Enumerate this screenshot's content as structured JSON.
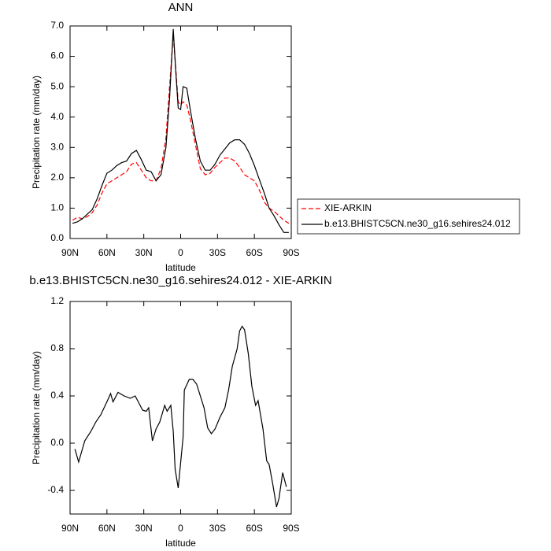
{
  "chart_data": [
    {
      "type": "line",
      "title": "ANN",
      "xlabel": "latitude",
      "ylabel": "Precipitation rate (mm/day)",
      "x": [
        88,
        84,
        80,
        76,
        72,
        68,
        64,
        60,
        56,
        52,
        48,
        44,
        40,
        36,
        32,
        28,
        24,
        20,
        16,
        12,
        9,
        6,
        4,
        2,
        0,
        -2,
        -5,
        -8,
        -12,
        -16,
        -20,
        -24,
        -28,
        -32,
        -36,
        -40,
        -44,
        -48,
        -52,
        -56,
        -60,
        -64,
        -68,
        -72,
        -76,
        -80,
        -84,
        -88
      ],
      "series": [
        {
          "name": "XIE-ARKIN",
          "color": "#ff0000",
          "linestyle": "dashed",
          "values": [
            0.6,
            0.7,
            0.65,
            0.72,
            0.85,
            1.1,
            1.5,
            1.8,
            1.9,
            2.0,
            2.1,
            2.2,
            2.45,
            2.5,
            2.25,
            2.0,
            1.9,
            1.9,
            2.3,
            3.3,
            5.0,
            6.7,
            5.6,
            4.5,
            4.4,
            4.5,
            4.4,
            3.9,
            3.1,
            2.3,
            2.1,
            2.15,
            2.35,
            2.5,
            2.65,
            2.65,
            2.55,
            2.35,
            2.1,
            2.0,
            1.9,
            1.6,
            1.2,
            1.0,
            0.9,
            0.75,
            0.6,
            0.5
          ]
        },
        {
          "name": "b.e13.BHISTC5CN.ne30_g16.sehires24.012",
          "color": "#000000",
          "linestyle": "solid",
          "values": [
            0.5,
            0.55,
            0.65,
            0.8,
            0.95,
            1.3,
            1.75,
            2.15,
            2.25,
            2.4,
            2.5,
            2.55,
            2.8,
            2.9,
            2.6,
            2.25,
            2.2,
            1.9,
            2.1,
            3.0,
            4.6,
            6.9,
            5.5,
            4.3,
            4.25,
            5.0,
            4.95,
            4.2,
            3.3,
            2.55,
            2.25,
            2.25,
            2.45,
            2.75,
            2.95,
            3.15,
            3.25,
            3.25,
            3.1,
            2.8,
            2.4,
            1.95,
            1.5,
            1.0,
            0.75,
            0.45,
            0.2,
            0.2
          ]
        }
      ],
      "xlim": [
        90,
        -90
      ],
      "xticks": [
        {
          "value": 90,
          "label": "90N"
        },
        {
          "value": 60,
          "label": "60N"
        },
        {
          "value": 30,
          "label": "30N"
        },
        0,
        {
          "value": -30,
          "label": "30S"
        },
        {
          "value": -60,
          "label": "60S"
        },
        {
          "value": -90,
          "label": "90S"
        }
      ],
      "ylim": [
        0,
        7
      ],
      "yticks": [
        {
          "value": 0,
          "label": "0.0"
        },
        {
          "value": 1,
          "label": "1.0"
        },
        {
          "value": 2,
          "label": "2.0"
        },
        {
          "value": 3,
          "label": "3.0"
        },
        {
          "value": 4,
          "label": "4.0"
        },
        {
          "value": 5,
          "label": "5.0"
        },
        {
          "value": 6,
          "label": "6.0"
        },
        {
          "value": 7,
          "label": "7.0"
        }
      ],
      "legend": "right"
    },
    {
      "type": "line",
      "title": "b.e13.BHISTC5CN.ne30_g16.sehires24.012 - XIE-ARKIN",
      "xlabel": "latitude",
      "ylabel": "Precipitation rate (mm/day)",
      "x": [
        86,
        83,
        78,
        73,
        69,
        65,
        60,
        57,
        55,
        51,
        46,
        41,
        37,
        35,
        31,
        28,
        26,
        23,
        20,
        17,
        13,
        11,
        8,
        6,
        4.5,
        2,
        -2,
        -3,
        -7,
        -10,
        -13,
        -19,
        -22,
        -25,
        -28,
        -32,
        -36,
        -39,
        -42,
        -46,
        -48,
        -50,
        -52,
        -55,
        -58,
        -61,
        -63,
        -67,
        -70,
        -72,
        -75,
        -78,
        -80,
        -83,
        -86
      ],
      "series": [
        {
          "color": "#000000",
          "linestyle": "solid",
          "values": [
            -0.05,
            -0.16,
            0.02,
            0.1,
            0.18,
            0.24,
            0.35,
            0.42,
            0.35,
            0.43,
            0.4,
            0.38,
            0.4,
            0.36,
            0.28,
            0.27,
            0.3,
            0.02,
            0.12,
            0.18,
            0.32,
            0.27,
            0.32,
            0.1,
            -0.22,
            -0.38,
            0.05,
            0.45,
            0.54,
            0.54,
            0.5,
            0.3,
            0.13,
            0.08,
            0.12,
            0.22,
            0.3,
            0.45,
            0.65,
            0.8,
            0.95,
            0.99,
            0.96,
            0.76,
            0.48,
            0.32,
            0.36,
            0.12,
            -0.15,
            -0.18,
            -0.35,
            -0.54,
            -0.47,
            -0.25,
            -0.37
          ]
        }
      ],
      "xlim": [
        90,
        -90
      ],
      "xticks": [
        {
          "value": 90,
          "label": "90N"
        },
        {
          "value": 60,
          "label": "60N"
        },
        {
          "value": 30,
          "label": "30N"
        },
        0,
        {
          "value": -30,
          "label": "30S"
        },
        {
          "value": -60,
          "label": "60S"
        },
        {
          "value": -90,
          "label": "90S"
        }
      ],
      "ylim": [
        -0.6,
        1.2
      ],
      "yticks": [
        1.2,
        0.8,
        0.4,
        {
          "value": 0,
          "label": "0.0"
        },
        -0.4
      ]
    }
  ]
}
